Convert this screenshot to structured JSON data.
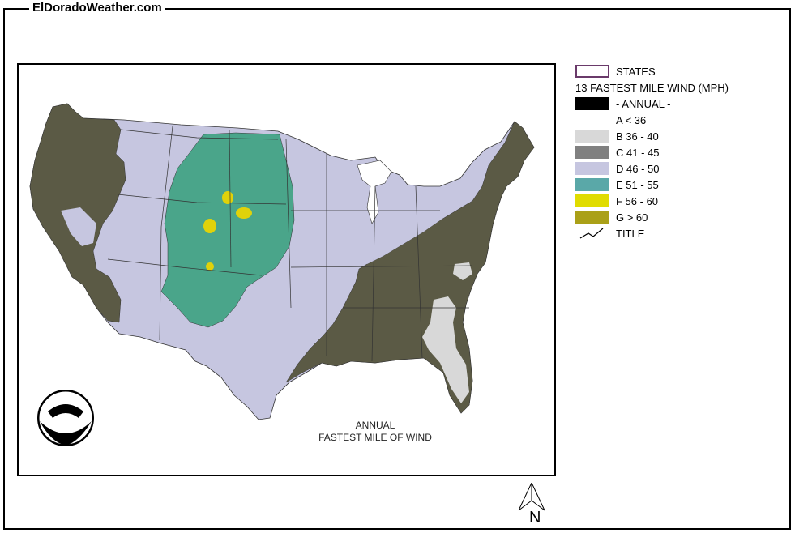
{
  "header": {
    "site_title": "ElDoradoWeather.com"
  },
  "map": {
    "caption_line1": "ANNUAL",
    "caption_line2": "FASTEST MILE OF WIND",
    "logo": "noaa-logo",
    "colors": {
      "background": "#ffffff",
      "class_c": "#5b5a45",
      "class_b": "#d8d8d8",
      "class_d": "#c6c6e0",
      "class_e": "#4aa58a",
      "class_f": "#e0d20a",
      "border": "#333333"
    }
  },
  "legend": {
    "states_label": "STATES",
    "title": "13 FASTEST MILE WIND (MPH)",
    "items": [
      {
        "label": "- ANNUAL -",
        "color": "#000000"
      },
      {
        "label": "A < 36",
        "color": "#ffffff"
      },
      {
        "label": "B 36 - 40",
        "color": "#d8d8d8"
      },
      {
        "label": "C 41 - 45",
        "color": "#808080"
      },
      {
        "label": "D 46 - 50",
        "color": "#c6c6e0"
      },
      {
        "label": "E 51 - 55",
        "color": "#5aa8a8"
      },
      {
        "label": "F 56 - 60",
        "color": "#e0dc00"
      },
      {
        "label": "G > 60",
        "color": "#aaa018"
      }
    ],
    "line_label": "TITLE"
  },
  "north_arrow": {
    "label": "N"
  }
}
